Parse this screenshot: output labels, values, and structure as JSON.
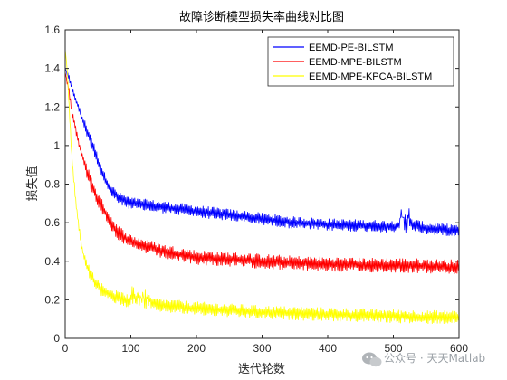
{
  "chart_data": {
    "type": "line",
    "title": "故障诊断模型损失率曲线对比图",
    "xlabel": "迭代轮数",
    "ylabel": "损失值",
    "xlim": [
      0,
      600
    ],
    "ylim": [
      0,
      1.6
    ],
    "xticks": [
      "0",
      "100",
      "200",
      "300",
      "400",
      "500",
      "600"
    ],
    "yticks": [
      "0",
      "0.2",
      "0.4",
      "0.6",
      "0.8",
      "1",
      "1.2",
      "1.4",
      "1.6"
    ],
    "grid": false,
    "legend_position": "top-right",
    "series": [
      {
        "name": "EEMD-PE-BILSTM",
        "color": "#0000ff",
        "x": [
          0,
          5,
          10,
          20,
          30,
          40,
          50,
          60,
          70,
          80,
          100,
          150,
          200,
          250,
          300,
          350,
          400,
          450,
          500,
          520,
          550,
          600
        ],
        "y": [
          1.4,
          1.36,
          1.3,
          1.2,
          1.1,
          1.02,
          0.92,
          0.83,
          0.77,
          0.73,
          0.7,
          0.68,
          0.66,
          0.64,
          0.62,
          0.6,
          0.59,
          0.585,
          0.58,
          0.6,
          0.57,
          0.56
        ]
      },
      {
        "name": "EEMD-MPE-BILSTM",
        "color": "#ff0000",
        "x": [
          0,
          5,
          10,
          20,
          30,
          40,
          50,
          60,
          70,
          80,
          100,
          150,
          200,
          250,
          300,
          350,
          400,
          450,
          500,
          550,
          600
        ],
        "y": [
          1.38,
          1.3,
          1.18,
          1.02,
          0.9,
          0.8,
          0.72,
          0.66,
          0.6,
          0.55,
          0.5,
          0.45,
          0.42,
          0.41,
          0.4,
          0.39,
          0.385,
          0.38,
          0.38,
          0.375,
          0.37
        ]
      },
      {
        "name": "EEMD-MPE-KPCA-BILSTM",
        "color": "#ffff00",
        "x": [
          0,
          3,
          6,
          10,
          15,
          20,
          25,
          30,
          40,
          50,
          60,
          80,
          100,
          150,
          200,
          250,
          300,
          350,
          400,
          450,
          500,
          550,
          600
        ],
        "y": [
          1.5,
          1.4,
          1.2,
          0.95,
          0.75,
          0.6,
          0.48,
          0.4,
          0.32,
          0.27,
          0.24,
          0.21,
          0.19,
          0.17,
          0.155,
          0.145,
          0.135,
          0.13,
          0.125,
          0.12,
          0.115,
          0.11,
          0.11
        ]
      }
    ]
  },
  "watermark": {
    "text": "公众号 · 天天Matlab",
    "icon": "wechat-icon"
  }
}
